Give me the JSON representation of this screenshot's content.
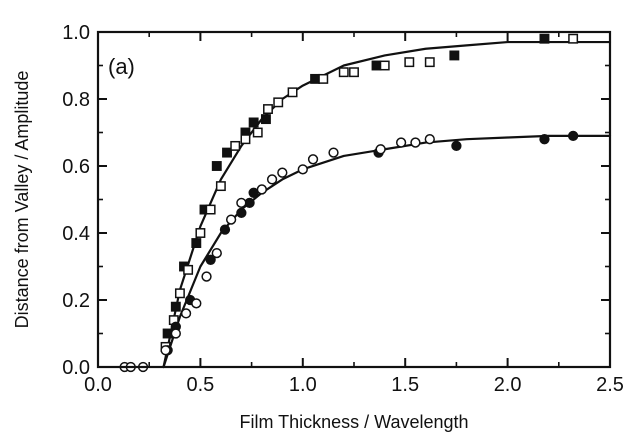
{
  "chart_data": {
    "type": "scatter",
    "panel_label": "(a)",
    "xlabel": "Film Thickness / Wavelength",
    "ylabel": "Distance from Valley / Amplitude",
    "xlim": [
      0.0,
      2.5
    ],
    "ylim": [
      0.0,
      1.0
    ],
    "x_ticks": [
      "0.0",
      "0.5",
      "1.0",
      "1.5",
      "2.0",
      "2.5"
    ],
    "y_ticks": [
      "0.0",
      "0.2",
      "0.4",
      "0.6",
      "0.8",
      "1.0"
    ],
    "grid": false,
    "legend": "none",
    "series": [
      {
        "marker": "square-filled",
        "x": [
          0.34,
          0.38,
          0.42,
          0.48,
          0.52,
          0.58,
          0.63,
          0.72,
          0.76,
          0.82,
          1.06,
          1.36,
          1.74,
          2.18
        ],
        "y": [
          0.1,
          0.18,
          0.3,
          0.37,
          0.47,
          0.6,
          0.64,
          0.7,
          0.73,
          0.74,
          0.86,
          0.9,
          0.93,
          0.98
        ]
      },
      {
        "marker": "square-open",
        "x": [
          0.33,
          0.37,
          0.4,
          0.44,
          0.5,
          0.55,
          0.6,
          0.67,
          0.72,
          0.78,
          0.83,
          0.88,
          0.95,
          1.1,
          1.2,
          1.25,
          1.4,
          1.52,
          1.62,
          2.32
        ],
        "y": [
          0.06,
          0.14,
          0.22,
          0.29,
          0.4,
          0.47,
          0.54,
          0.66,
          0.68,
          0.7,
          0.77,
          0.79,
          0.82,
          0.86,
          0.88,
          0.88,
          0.9,
          0.91,
          0.91,
          0.98
        ]
      },
      {
        "marker": "circle-filled",
        "x": [
          0.34,
          0.38,
          0.45,
          0.55,
          0.62,
          0.7,
          0.74,
          0.76,
          1.37,
          1.75,
          2.18,
          2.32
        ],
        "y": [
          0.05,
          0.12,
          0.2,
          0.32,
          0.41,
          0.46,
          0.49,
          0.52,
          0.64,
          0.66,
          0.68,
          0.69
        ]
      },
      {
        "marker": "circle-open",
        "x": [
          0.13,
          0.16,
          0.22,
          0.33,
          0.38,
          0.43,
          0.48,
          0.53,
          0.58,
          0.65,
          0.7,
          0.8,
          0.85,
          0.9,
          1.0,
          1.05,
          1.15,
          1.38,
          1.48,
          1.55,
          1.62
        ],
        "y": [
          0.0,
          0.0,
          0.0,
          0.05,
          0.1,
          0.16,
          0.19,
          0.27,
          0.34,
          0.44,
          0.49,
          0.53,
          0.56,
          0.58,
          0.59,
          0.62,
          0.64,
          0.65,
          0.67,
          0.67,
          0.68
        ]
      }
    ],
    "fit_curves": [
      {
        "x": [
          0.32,
          0.4,
          0.5,
          0.6,
          0.7,
          0.8,
          0.9,
          1.0,
          1.2,
          1.4,
          1.6,
          1.8,
          2.0,
          2.2,
          2.5
        ],
        "y": [
          0.0,
          0.23,
          0.42,
          0.56,
          0.66,
          0.74,
          0.8,
          0.84,
          0.9,
          0.93,
          0.95,
          0.96,
          0.97,
          0.97,
          0.97
        ]
      },
      {
        "x": [
          0.32,
          0.4,
          0.5,
          0.6,
          0.7,
          0.8,
          0.9,
          1.0,
          1.2,
          1.4,
          1.6,
          1.8,
          2.0,
          2.2,
          2.5
        ],
        "y": [
          0.0,
          0.15,
          0.3,
          0.4,
          0.47,
          0.52,
          0.56,
          0.59,
          0.63,
          0.65,
          0.67,
          0.68,
          0.685,
          0.69,
          0.69
        ]
      }
    ]
  }
}
